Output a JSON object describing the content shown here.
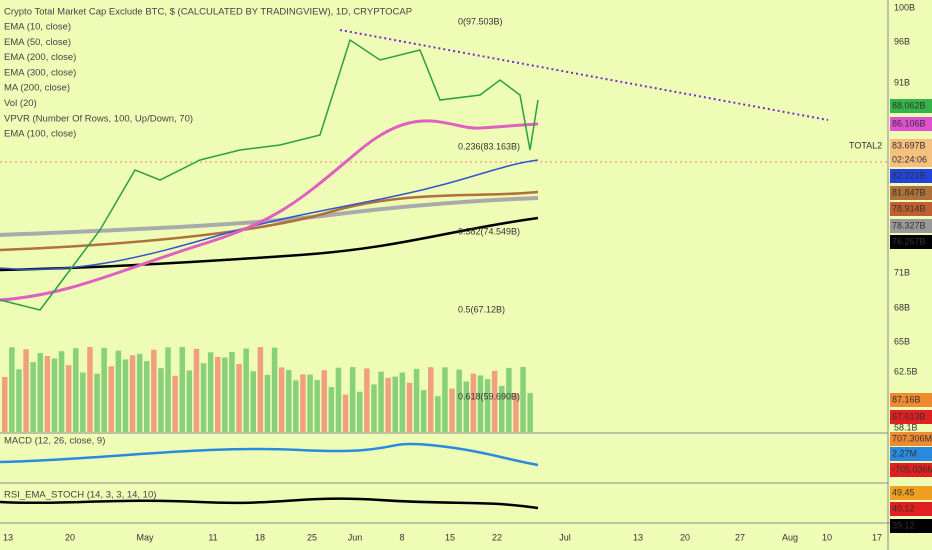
{
  "header": {
    "title": "Crypto Total Market Cap Exclude BTC, $ (CALCULATED BY TRADINGVIEW), 1D, CRYPTOCAP"
  },
  "indicators": [
    "EMA (10, close)",
    "EMA (50, close)",
    "EMA (200, close)",
    "EMA (300, close)",
    "MA (200, close)",
    "Vol (20)",
    "VPVR (Number Of Rows, 100, Up/Down, 70)",
    "EMA (100, close)"
  ],
  "fib_levels": [
    "0(97.503B)",
    "0.236(83.163B)",
    "0.382(74.549B)",
    "0.5(67.12B)",
    "0.618(59.690B)"
  ],
  "price_axis": [
    "100B",
    "96B",
    "91B",
    "71B",
    "68B",
    "65B",
    "62.5B",
    "58.1B"
  ],
  "badges": [
    "88.062B",
    "86.106B",
    "TOTAL2",
    "83.697B",
    "02:24:06",
    "82.221B",
    "81.847B",
    "78.914B",
    "78.327B",
    "76.267B",
    "87.16B",
    "67.613B"
  ],
  "macd": {
    "label": "MACD (12, 26, close, 9)",
    "badges": [
      "707.306M",
      "2.27M",
      "-705.036M"
    ]
  },
  "rsi": {
    "label": "RSI_EMA_STOCH (14, 3, 3, 14, 10)",
    "badges": [
      "49.45",
      "40.12",
      "39.12"
    ]
  },
  "time_axis": [
    "13",
    "20",
    "May",
    "11",
    "18",
    "25",
    "Jun",
    "8",
    "15",
    "22",
    "Jul",
    "13",
    "20",
    "27",
    "Aug",
    "10",
    "17"
  ]
}
